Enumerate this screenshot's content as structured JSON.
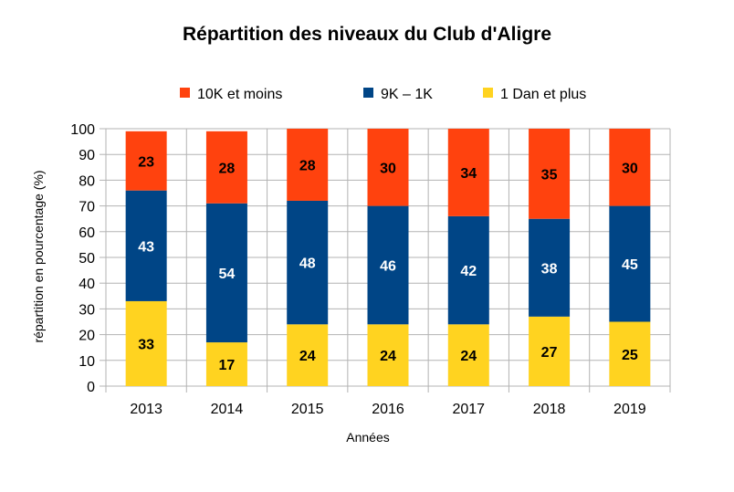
{
  "chart_data": {
    "type": "bar",
    "stacked": true,
    "title": "Répartition des niveaux du Club d'Aligre",
    "xlabel": "Années",
    "ylabel": "répartition en pourcentage (%)",
    "ylim": [
      0,
      100
    ],
    "yticks": [
      0,
      10,
      20,
      30,
      40,
      50,
      60,
      70,
      80,
      90,
      100
    ],
    "grid": true,
    "legend_position": "top",
    "categories": [
      "2013",
      "2014",
      "2015",
      "2016",
      "2017",
      "2018",
      "2019"
    ],
    "series": [
      {
        "name": "1 Dan et plus",
        "color": "#ffd320",
        "label_color": "#000000",
        "values": [
          33,
          17,
          24,
          24,
          24,
          27,
          25
        ]
      },
      {
        "name": "9K – 1K",
        "color": "#004586",
        "label_color": "#ffffff",
        "values": [
          43,
          54,
          48,
          46,
          42,
          38,
          45
        ]
      },
      {
        "name": "10K et moins",
        "color": "#ff420e",
        "label_color": "#000000",
        "values": [
          23,
          28,
          28,
          30,
          34,
          35,
          30
        ]
      }
    ],
    "legend_order": [
      2,
      1,
      0
    ]
  }
}
